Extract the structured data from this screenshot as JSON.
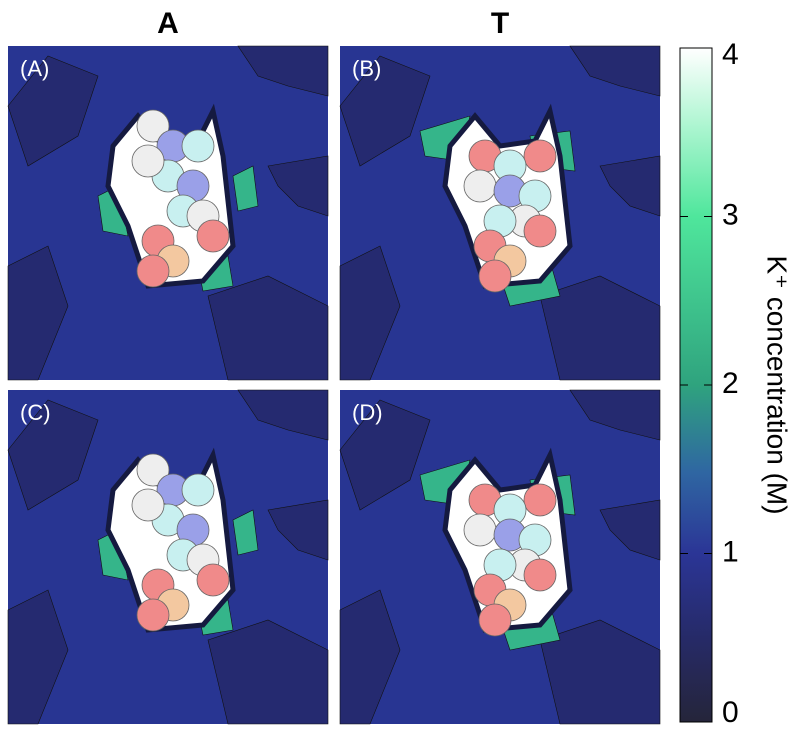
{
  "chart_data": {
    "type": "contour",
    "column_titles": [
      "A",
      "T"
    ],
    "panels": [
      "(A)",
      "(B)",
      "(C)",
      "(D)"
    ],
    "colorbar": {
      "label": "K⁺ concentration (M)",
      "lim": [
        0,
        4
      ],
      "ticks": [
        0,
        1,
        2,
        3,
        4
      ]
    }
  }
}
